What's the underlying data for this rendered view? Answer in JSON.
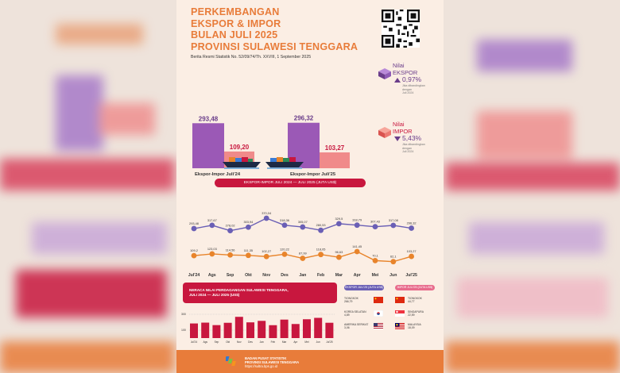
{
  "title": {
    "line1": "PERKEMBANGAN",
    "line2": "EKSPOR & IMPOR",
    "line3": "BULAN JULI 2025",
    "line4": "PROVINSI SULAWESI TENGGARA"
  },
  "subtitle": "Berita Resmi Statistik No. 52/09/74/Th. XXVIII, 1 September 2025",
  "ekspor_metric": {
    "label1": "Nilai",
    "label2": "EKSPOR",
    "pct": "0,97%",
    "note1": "Jika dibandingkan",
    "note2": "dengan",
    "note3": "Juli 2024"
  },
  "impor_metric": {
    "label1": "Nilai",
    "label2": "IMPOR",
    "pct": "5,43%",
    "note1": "Jika dibandingkan",
    "note2": "dengan",
    "note3": "Juli 2024"
  },
  "colors": {
    "ekspor": "#9b59b6",
    "impor": "#f08a8a",
    "accent": "#e87c3a",
    "red": "#c8173e",
    "line_ekspor": "#6a5fb5",
    "line_impor": "#e8842b"
  },
  "chart_data": [
    {
      "type": "bar",
      "categories": [
        "Ekspor-Impor Juli'24",
        "Ekspor-Impor Juli'25"
      ],
      "series": [
        {
          "values": [
            293.48,
            296.32
          ],
          "labels": [
            "293,48",
            "296,32"
          ]
        },
        {
          "values": [
            109.2,
            103.27
          ],
          "labels": [
            "109,20",
            "103,27"
          ]
        }
      ],
      "title": "EKSPOR-IMPOR JULI 2024 — JULI 2025 (JUTA US$)"
    },
    {
      "type": "line",
      "x": [
        "Jul'24",
        "Ags",
        "Sep",
        "Okt",
        "Nov",
        "Des",
        "Jan",
        "Feb",
        "Mar",
        "Apr",
        "Mei",
        "Jun",
        "Jul'25"
      ],
      "series": [
        {
          "values": [
            293.48,
            317.67,
            278.02,
            303.94,
            370.04,
            318.36,
            305.07,
            280.53,
            329.5,
            318.79,
            307.43,
            317.08,
            296.32
          ],
          "labels": [
            "293,48",
            "317,67",
            "278,02",
            "303,94",
            "370,04",
            "318,36",
            "305,07",
            "280,53",
            "329,5",
            "318,79",
            "307,43",
            "317,08",
            "296,32"
          ]
        },
        {
          "values": [
            109.2,
            123.03,
            114.56,
            111.35,
            102.27,
            120.22,
            87.99,
            118.05,
            96.63,
            141.45,
            70.1,
            62.1,
            103.27
          ],
          "labels": [
            "109,2",
            "123,03",
            "114,56",
            "111,35",
            "102,27",
            "120,22",
            "87,99",
            "118,05",
            "96,63",
            "141,45",
            "70,1",
            "62,1",
            "103,27"
          ]
        }
      ]
    },
    {
      "type": "bar",
      "title_line1": "NERACA NILAI PERDAGANGAN SULAWESI TENGGARA,",
      "title_line2": "JULI 2024 — JULI 2025 (US$)",
      "categories": [
        "Jul'24",
        "Ags",
        "Sep",
        "Okt",
        "Nov",
        "Des",
        "Jan",
        "Feb",
        "Mar",
        "Apr",
        "Mei",
        "Jun",
        "Jul'25"
      ],
      "values": [
        184.28,
        194.64,
        163.46,
        192.59,
        267.77,
        198.14,
        217.08,
        162.48,
        232.87,
        177.34,
        237.33,
        254.98,
        193.05
      ],
      "ytick_top": "300",
      "ytick_bottom": "100"
    }
  ],
  "partners": {
    "ekspor_header": "EKSPOR JULI'25 (JUTA US$)",
    "impor_header": "IMPOR JULI'25 (JUTA US$)",
    "ekspor": [
      {
        "name": "TIONGKOK",
        "value": "266,79"
      },
      {
        "name": "KOREA SELATAN",
        "value": "4,89"
      },
      {
        "name": "AMERIKA SERIKAT",
        "value": "3,06"
      }
    ],
    "impor": [
      {
        "name": "TIONGKOK",
        "value": "44,77"
      },
      {
        "name": "SINGAPURA",
        "value": "22,59"
      },
      {
        "name": "MALAYSIA",
        "value": "18,09"
      }
    ]
  },
  "footer": {
    "line1": "BADAN PUSAT STATISTIK",
    "line2": "PROVINSI SULAWESI TENGGARA",
    "line3": "https://sultra.bps.go.id"
  }
}
